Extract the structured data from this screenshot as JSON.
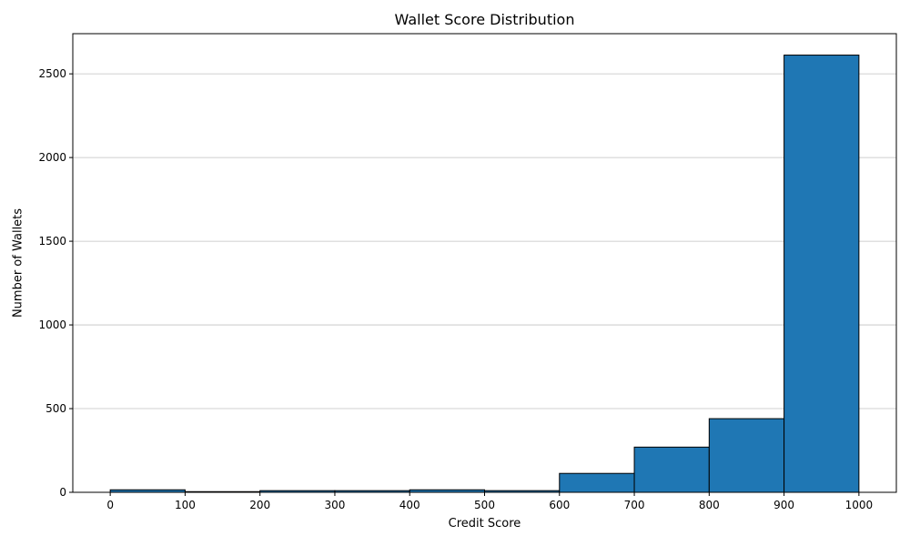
{
  "chart_data": {
    "type": "bar",
    "title": "Wallet Score Distribution",
    "xlabel": "Credit Score",
    "ylabel": "Number of Wallets",
    "bins": [
      {
        "start": 0,
        "end": 100,
        "value": 15
      },
      {
        "start": 100,
        "end": 200,
        "value": 4
      },
      {
        "start": 200,
        "end": 300,
        "value": 10
      },
      {
        "start": 300,
        "end": 400,
        "value": 10
      },
      {
        "start": 400,
        "end": 500,
        "value": 15
      },
      {
        "start": 500,
        "end": 600,
        "value": 10
      },
      {
        "start": 600,
        "end": 700,
        "value": 113
      },
      {
        "start": 700,
        "end": 800,
        "value": 270
      },
      {
        "start": 800,
        "end": 900,
        "value": 440
      },
      {
        "start": 900,
        "end": 1000,
        "value": 2612
      }
    ],
    "x_ticks": [
      "0",
      "100",
      "200",
      "300",
      "400",
      "500",
      "600",
      "700",
      "800",
      "900",
      "1000"
    ],
    "y_ticks": [
      "0",
      "500",
      "1000",
      "1500",
      "2000",
      "2500"
    ],
    "xlim": [
      -50,
      1050
    ],
    "ylim": [
      0,
      2740
    ],
    "grid": "y",
    "bar_color": "#1f77b4",
    "edge_color": "#000000"
  }
}
